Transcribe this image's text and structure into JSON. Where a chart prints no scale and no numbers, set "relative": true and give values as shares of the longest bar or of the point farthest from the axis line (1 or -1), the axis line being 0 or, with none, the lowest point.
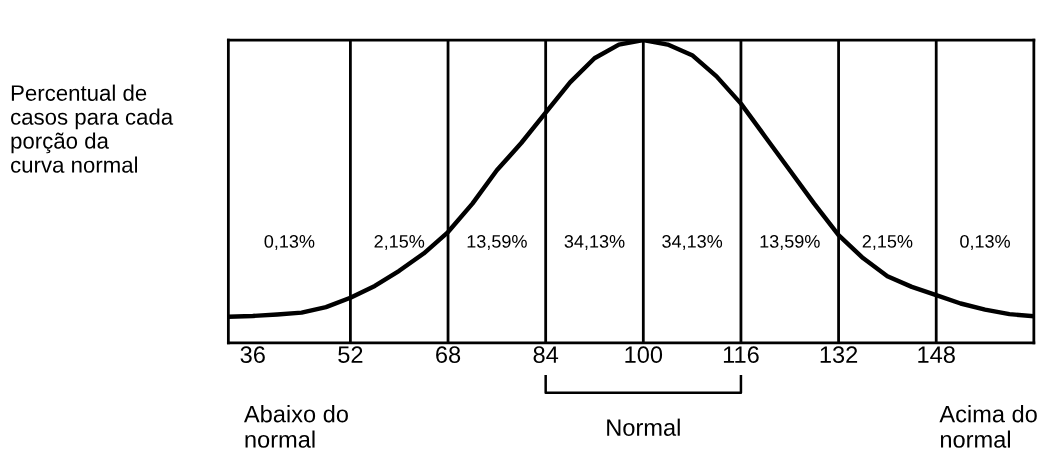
{
  "chart_data": {
    "type": "line",
    "relative": true,
    "x": [
      32,
      36,
      40,
      44,
      48,
      52,
      56,
      60,
      64,
      68,
      72,
      76,
      80,
      84,
      88,
      92,
      96,
      100,
      104,
      108,
      112,
      116,
      120,
      124,
      128,
      132,
      136,
      140,
      144,
      148,
      152,
      156,
      160,
      164
    ],
    "series": [
      {
        "color": "#000000",
        "values": [
          0.086,
          0.089,
          0.094,
          0.1,
          0.118,
          0.149,
          0.188,
          0.238,
          0.295,
          0.366,
          0.46,
          0.57,
          0.66,
          0.76,
          0.86,
          0.94,
          0.985,
          1.0,
          0.985,
          0.95,
          0.88,
          0.79,
          0.68,
          0.57,
          0.46,
          0.356,
          0.28,
          0.22,
          0.185,
          0.158,
          0.13,
          0.11,
          0.095,
          0.088
        ]
      }
    ],
    "xlim": [
      32,
      164
    ],
    "xticks": [
      36,
      52,
      68,
      84,
      100,
      116,
      132,
      148
    ],
    "ylabel": "Percentual de\ncasos para cada\nporção da\ncurva normal",
    "grid": false,
    "legend": false,
    "marker": "none",
    "line_style": "solid",
    "ref_lines": [
      {
        "axis": "x",
        "value": 52,
        "color": "#000000"
      },
      {
        "axis": "x",
        "value": 68,
        "color": "#000000"
      },
      {
        "axis": "x",
        "value": 84,
        "color": "#000000"
      },
      {
        "axis": "x",
        "value": 100,
        "color": "#000000"
      },
      {
        "axis": "x",
        "value": 116,
        "color": "#000000"
      },
      {
        "axis": "x",
        "value": 132,
        "color": "#000000"
      },
      {
        "axis": "x",
        "value": 148,
        "color": "#000000"
      }
    ],
    "annotations": [
      "0,13%",
      "2,15%",
      "13,59%",
      "34,13%",
      "34,13%",
      "13,59%",
      "2,15%",
      "0,13%",
      "Normal",
      "Abaixo do\nnormal",
      "Acima do\nnormal"
    ]
  }
}
